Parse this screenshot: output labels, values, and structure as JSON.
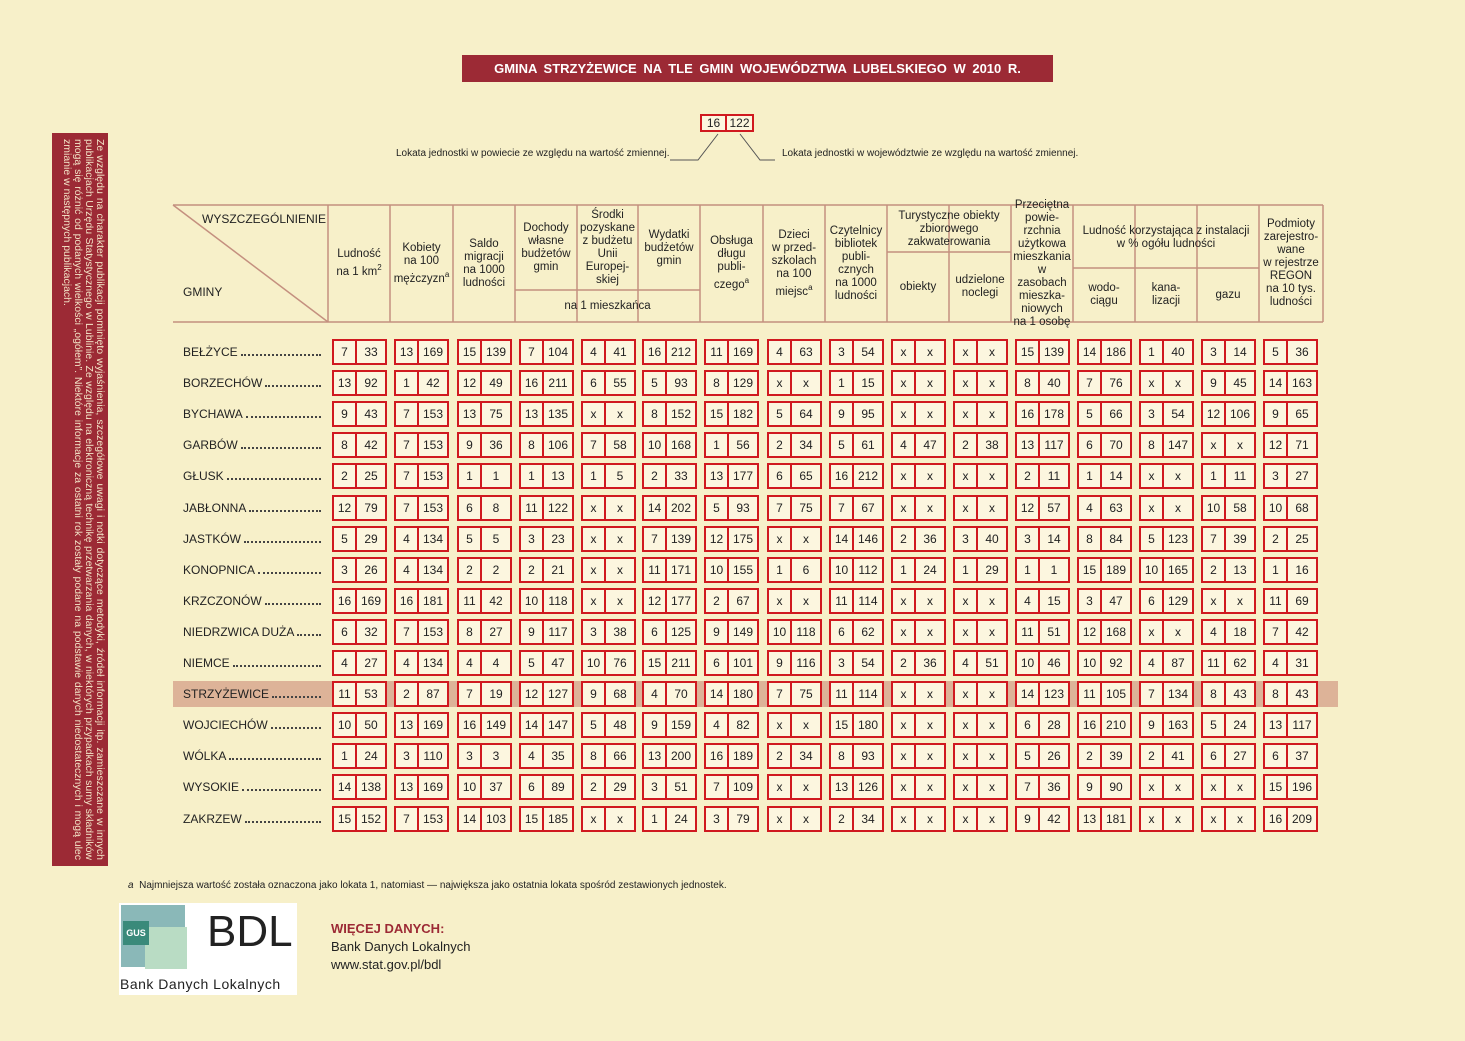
{
  "header": {
    "title": "GMINA STRZYŻEWICE NA TLE GMIN WOJEWÓDZTWA LUBELSKIEGO W 2010 R."
  },
  "legend": {
    "example": [
      16,
      122
    ],
    "left": "Lokata jednostki w powiecie ze względu na wartość zmiennej.",
    "right": "Lokata jednostki w województwie ze względu na wartość zmiennej."
  },
  "sidebar": "Ze względu na charakter publikacji pominięto wyjaśnienia, szczegółowe uwagi i notki dotyczące metodyki, źródeł informacji itp. zamieszczane w innych publikacjach Urzędu Statystycznego w Lublinie. Ze względu na elektroniczną technikę przetwarzania danych, w niektórych przypadkach sumy składników mogą się różnić od podanych wielkości „ogółem”. Niektóre informacje za ostatni rok zostały podane na podstawie danych niedostatecznych i mogą ulec zmianie w następnych publikacjach.",
  "table": {
    "corner_top": "WYSZCZEGÓLNIENIE",
    "corner_bottom": "GMINY",
    "columns": [
      {
        "label": "Ludność\nna 1 km",
        "sup": "2"
      },
      {
        "label": "Kobiety\nna 100\nmężczyzn",
        "sup": "a"
      },
      {
        "label": "Saldo\nmigracji\nna 1000\nludności"
      },
      {
        "label": "Dochody\nwłasne\nbudżetów\ngmin"
      },
      {
        "label": "Środki\npozyskane\nz budżetu\nUnii\nEuropej-\nskiej"
      },
      {
        "label": "Wydatki\nbudżetów\ngmin"
      },
      {
        "label": "Obsługa\ndługu\npubli-\nczego",
        "sup": "a"
      },
      {
        "label": "Dzieci\nw przed-\nszkolach\nna 100\nmiejsc",
        "sup": "a"
      },
      {
        "label": "Czytelnicy\nbibliotek\npubli-\ncznych\nna 1000\nludności"
      },
      {
        "label": "obiekty"
      },
      {
        "label": "udzielone\nnoclegi"
      },
      {
        "label": "Przeciętna\npowie-\nrzchnia\nużytkowa\nmieszkania\nw\nzasobach\nmieszka-\nniowych\nna 1 osobę"
      },
      {
        "label": "wodo-\nciągu"
      },
      {
        "label": "kana-\nlizacji"
      },
      {
        "label": "gazu"
      },
      {
        "label": "Podmioty\nzarejestro-\nwane\nw rejestrze\nREGON\nna 10 tys.\nludności"
      }
    ],
    "groups": [
      {
        "label": "na 1 mieszkańca"
      },
      {
        "label": "Turystyczne obiekty\nzbiorowego\nzakwaterowania"
      },
      {
        "label": "Ludność korzystająca z instalacji\nw % ogółu ludności"
      }
    ],
    "highlight": "STRZYŻEWICE",
    "rows": [
      {
        "name": "BEŁŻYCE",
        "cells": [
          [
            7,
            33
          ],
          [
            13,
            169
          ],
          [
            15,
            139
          ],
          [
            7,
            104
          ],
          [
            4,
            41
          ],
          [
            16,
            212
          ],
          [
            11,
            169
          ],
          [
            4,
            63
          ],
          [
            3,
            54
          ],
          [
            "x",
            "x"
          ],
          [
            "x",
            "x"
          ],
          [
            15,
            139
          ],
          [
            14,
            186
          ],
          [
            1,
            40
          ],
          [
            3,
            14
          ],
          [
            5,
            36
          ]
        ]
      },
      {
        "name": "BORZECHÓW",
        "cells": [
          [
            13,
            92
          ],
          [
            1,
            42
          ],
          [
            12,
            49
          ],
          [
            16,
            211
          ],
          [
            6,
            55
          ],
          [
            5,
            93
          ],
          [
            8,
            129
          ],
          [
            "x",
            "x"
          ],
          [
            1,
            15
          ],
          [
            "x",
            "x"
          ],
          [
            "x",
            "x"
          ],
          [
            8,
            40
          ],
          [
            7,
            76
          ],
          [
            "x",
            "x"
          ],
          [
            9,
            45
          ],
          [
            14,
            163
          ]
        ]
      },
      {
        "name": "BYCHAWA",
        "cells": [
          [
            9,
            43
          ],
          [
            7,
            153
          ],
          [
            13,
            75
          ],
          [
            13,
            135
          ],
          [
            "x",
            "x"
          ],
          [
            8,
            152
          ],
          [
            15,
            182
          ],
          [
            5,
            64
          ],
          [
            9,
            95
          ],
          [
            "x",
            "x"
          ],
          [
            "x",
            "x"
          ],
          [
            16,
            178
          ],
          [
            5,
            66
          ],
          [
            3,
            54
          ],
          [
            12,
            106
          ],
          [
            9,
            65
          ]
        ]
      },
      {
        "name": "GARBÓW",
        "cells": [
          [
            8,
            42
          ],
          [
            7,
            153
          ],
          [
            9,
            36
          ],
          [
            8,
            106
          ],
          [
            7,
            58
          ],
          [
            10,
            168
          ],
          [
            1,
            56
          ],
          [
            2,
            34
          ],
          [
            5,
            61
          ],
          [
            4,
            47
          ],
          [
            2,
            38
          ],
          [
            13,
            117
          ],
          [
            6,
            70
          ],
          [
            8,
            147
          ],
          [
            "x",
            "x"
          ],
          [
            12,
            71
          ]
        ]
      },
      {
        "name": "GŁUSK",
        "cells": [
          [
            2,
            25
          ],
          [
            7,
            153
          ],
          [
            1,
            1
          ],
          [
            1,
            13
          ],
          [
            1,
            5
          ],
          [
            2,
            33
          ],
          [
            13,
            177
          ],
          [
            6,
            65
          ],
          [
            16,
            212
          ],
          [
            "x",
            "x"
          ],
          [
            "x",
            "x"
          ],
          [
            2,
            11
          ],
          [
            1,
            14
          ],
          [
            "x",
            "x"
          ],
          [
            1,
            11
          ],
          [
            3,
            27
          ]
        ]
      },
      {
        "name": "JABŁONNA",
        "cells": [
          [
            12,
            79
          ],
          [
            7,
            153
          ],
          [
            6,
            8
          ],
          [
            11,
            122
          ],
          [
            "x",
            "x"
          ],
          [
            14,
            202
          ],
          [
            5,
            93
          ],
          [
            7,
            75
          ],
          [
            7,
            67
          ],
          [
            "x",
            "x"
          ],
          [
            "x",
            "x"
          ],
          [
            12,
            57
          ],
          [
            4,
            63
          ],
          [
            "x",
            "x"
          ],
          [
            10,
            58
          ],
          [
            10,
            68
          ]
        ]
      },
      {
        "name": "JASTKÓW",
        "cells": [
          [
            5,
            29
          ],
          [
            4,
            134
          ],
          [
            5,
            5
          ],
          [
            3,
            23
          ],
          [
            "x",
            "x"
          ],
          [
            7,
            139
          ],
          [
            12,
            175
          ],
          [
            "x",
            "x"
          ],
          [
            14,
            146
          ],
          [
            2,
            36
          ],
          [
            3,
            40
          ],
          [
            3,
            14
          ],
          [
            8,
            84
          ],
          [
            5,
            123
          ],
          [
            7,
            39
          ],
          [
            2,
            25
          ]
        ]
      },
      {
        "name": "KONOPNICA",
        "cells": [
          [
            3,
            26
          ],
          [
            4,
            134
          ],
          [
            2,
            2
          ],
          [
            2,
            21
          ],
          [
            "x",
            "x"
          ],
          [
            11,
            171
          ],
          [
            10,
            155
          ],
          [
            1,
            6
          ],
          [
            10,
            112
          ],
          [
            1,
            24
          ],
          [
            1,
            29
          ],
          [
            1,
            1
          ],
          [
            15,
            189
          ],
          [
            10,
            165
          ],
          [
            2,
            13
          ],
          [
            1,
            16
          ]
        ]
      },
      {
        "name": "KRZCZONÓW",
        "cells": [
          [
            16,
            169
          ],
          [
            16,
            181
          ],
          [
            11,
            42
          ],
          [
            10,
            118
          ],
          [
            "x",
            "x"
          ],
          [
            12,
            177
          ],
          [
            2,
            67
          ],
          [
            "x",
            "x"
          ],
          [
            11,
            114
          ],
          [
            "x",
            "x"
          ],
          [
            "x",
            "x"
          ],
          [
            4,
            15
          ],
          [
            3,
            47
          ],
          [
            6,
            129
          ],
          [
            "x",
            "x"
          ],
          [
            11,
            69
          ]
        ]
      },
      {
        "name": "NIEDRZWICA DUŻA",
        "cells": [
          [
            6,
            32
          ],
          [
            7,
            153
          ],
          [
            8,
            27
          ],
          [
            9,
            117
          ],
          [
            3,
            38
          ],
          [
            6,
            125
          ],
          [
            9,
            149
          ],
          [
            10,
            118
          ],
          [
            6,
            62
          ],
          [
            "x",
            "x"
          ],
          [
            "x",
            "x"
          ],
          [
            11,
            51
          ],
          [
            12,
            168
          ],
          [
            "x",
            "x"
          ],
          [
            4,
            18
          ],
          [
            7,
            42
          ]
        ]
      },
      {
        "name": "NIEMCE",
        "cells": [
          [
            4,
            27
          ],
          [
            4,
            134
          ],
          [
            4,
            4
          ],
          [
            5,
            47
          ],
          [
            10,
            76
          ],
          [
            15,
            211
          ],
          [
            6,
            101
          ],
          [
            9,
            116
          ],
          [
            3,
            54
          ],
          [
            2,
            36
          ],
          [
            4,
            51
          ],
          [
            10,
            46
          ],
          [
            10,
            92
          ],
          [
            4,
            87
          ],
          [
            11,
            62
          ],
          [
            4,
            31
          ]
        ]
      },
      {
        "name": "STRZYŻEWICE",
        "cells": [
          [
            11,
            53
          ],
          [
            2,
            87
          ],
          [
            7,
            19
          ],
          [
            12,
            127
          ],
          [
            9,
            68
          ],
          [
            4,
            70
          ],
          [
            14,
            180
          ],
          [
            7,
            75
          ],
          [
            11,
            114
          ],
          [
            "x",
            "x"
          ],
          [
            "x",
            "x"
          ],
          [
            14,
            123
          ],
          [
            11,
            105
          ],
          [
            7,
            134
          ],
          [
            8,
            43
          ],
          [
            8,
            43
          ]
        ]
      },
      {
        "name": "WOJCIECHÓW",
        "cells": [
          [
            10,
            50
          ],
          [
            13,
            169
          ],
          [
            16,
            149
          ],
          [
            14,
            147
          ],
          [
            5,
            48
          ],
          [
            9,
            159
          ],
          [
            4,
            82
          ],
          [
            "x",
            "x"
          ],
          [
            15,
            180
          ],
          [
            "x",
            "x"
          ],
          [
            "x",
            "x"
          ],
          [
            6,
            28
          ],
          [
            16,
            210
          ],
          [
            9,
            163
          ],
          [
            5,
            24
          ],
          [
            13,
            117
          ]
        ]
      },
      {
        "name": "WÓLKA",
        "cells": [
          [
            1,
            24
          ],
          [
            3,
            110
          ],
          [
            3,
            3
          ],
          [
            4,
            35
          ],
          [
            8,
            66
          ],
          [
            13,
            200
          ],
          [
            16,
            189
          ],
          [
            2,
            34
          ],
          [
            8,
            93
          ],
          [
            "x",
            "x"
          ],
          [
            "x",
            "x"
          ],
          [
            5,
            26
          ],
          [
            2,
            39
          ],
          [
            2,
            41
          ],
          [
            6,
            27
          ],
          [
            6,
            37
          ]
        ]
      },
      {
        "name": "WYSOKIE",
        "cells": [
          [
            14,
            138
          ],
          [
            13,
            169
          ],
          [
            10,
            37
          ],
          [
            6,
            89
          ],
          [
            2,
            29
          ],
          [
            3,
            51
          ],
          [
            7,
            109
          ],
          [
            "x",
            "x"
          ],
          [
            13,
            126
          ],
          [
            "x",
            "x"
          ],
          [
            "x",
            "x"
          ],
          [
            7,
            36
          ],
          [
            9,
            90
          ],
          [
            "x",
            "x"
          ],
          [
            "x",
            "x"
          ],
          [
            15,
            196
          ]
        ]
      },
      {
        "name": "ZAKRZEW",
        "cells": [
          [
            15,
            152
          ],
          [
            7,
            153
          ],
          [
            14,
            103
          ],
          [
            15,
            185
          ],
          [
            "x",
            "x"
          ],
          [
            1,
            24
          ],
          [
            3,
            79
          ],
          [
            "x",
            "x"
          ],
          [
            2,
            34
          ],
          [
            "x",
            "x"
          ],
          [
            "x",
            "x"
          ],
          [
            9,
            42
          ],
          [
            13,
            181
          ],
          [
            "x",
            "x"
          ],
          [
            "x",
            "x"
          ],
          [
            16,
            209
          ]
        ]
      }
    ]
  },
  "footnote": {
    "marker": "a",
    "text": "Najmniejsza wartość została oznaczona jako lokata 1, natomiast — największa jako ostatnia lokata spośród zestawionych jednostek."
  },
  "logo": {
    "badge": "GUS",
    "big": "BDL",
    "caption": "Bank Danych Lokalnych"
  },
  "more": {
    "heading": "WIĘCEJ DANYCH:",
    "line1": "Bank Danych Lokalnych",
    "line2": "www.stat.gov.pl/bdl"
  }
}
